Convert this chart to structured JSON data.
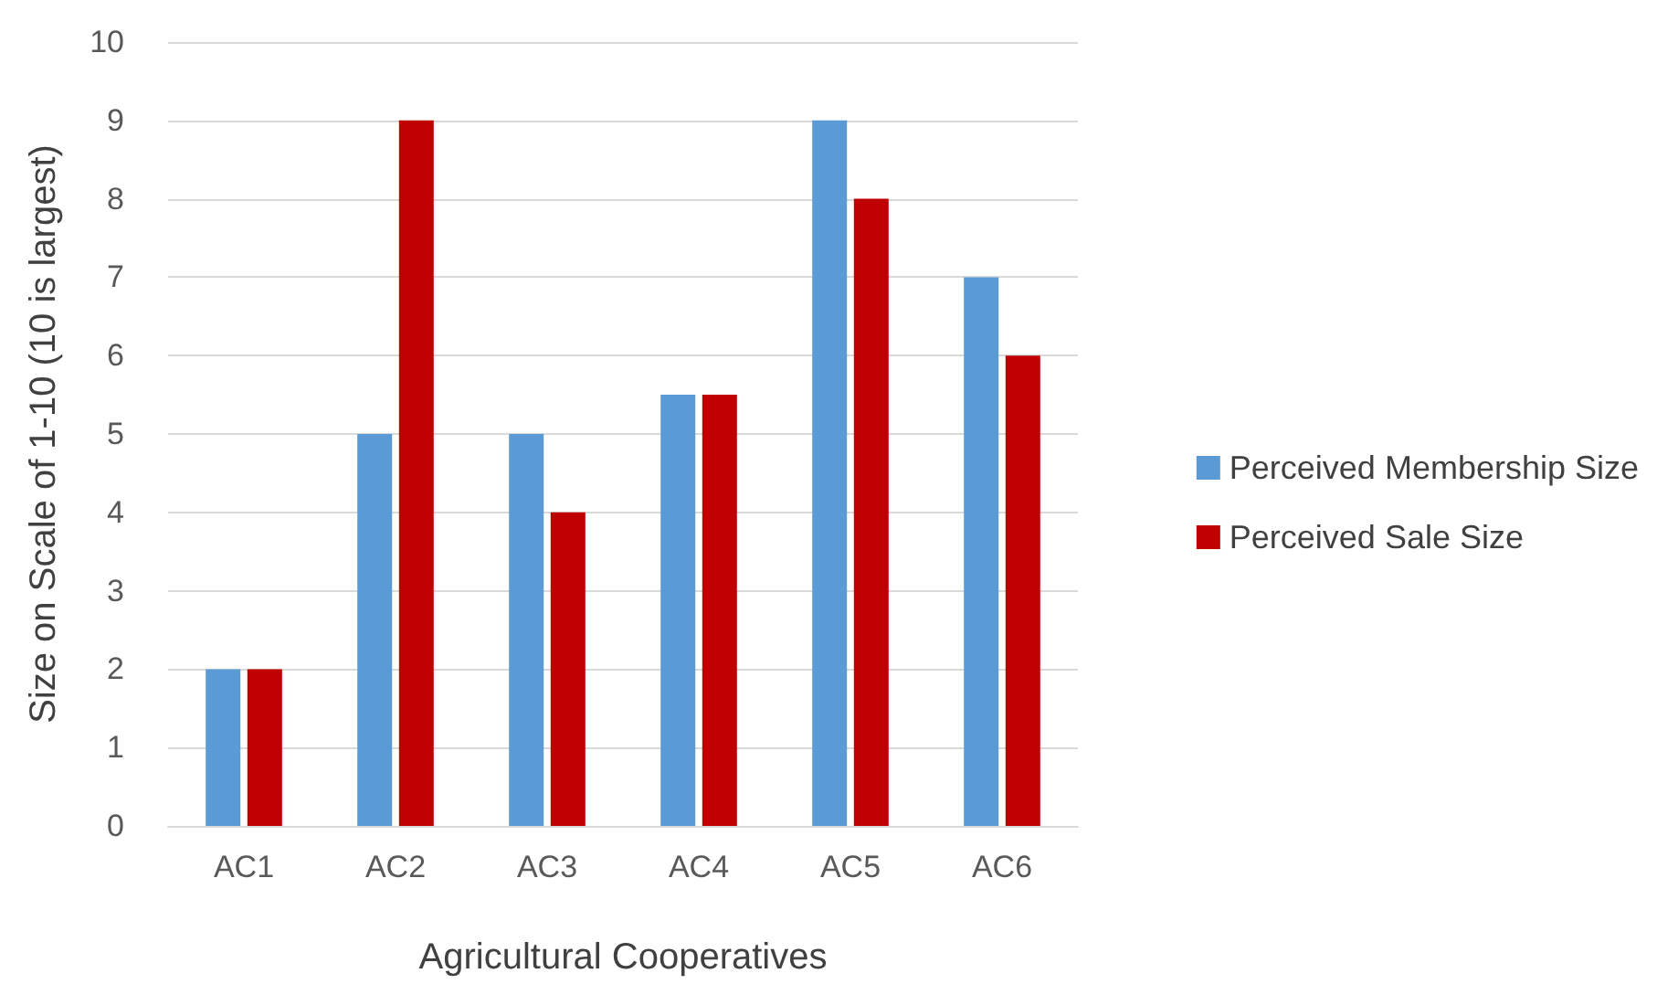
{
  "chart_data": {
    "type": "bar",
    "xlabel": "Agricultural Cooperatives",
    "ylabel": "Size on Scale of 1-10 (10 is largest)",
    "categories": [
      "AC1",
      "AC2",
      "AC3",
      "AC4",
      "AC5",
      "AC6"
    ],
    "series": [
      {
        "name": "Perceived Membership Size",
        "color": "#5b9bd5",
        "values": [
          2,
          5,
          5,
          5.5,
          9,
          7
        ]
      },
      {
        "name": "Perceived Sale Size",
        "color": "#c00000",
        "values": [
          2,
          9,
          4,
          5.5,
          8,
          6
        ]
      }
    ],
    "ylim": [
      0,
      10
    ],
    "yticks": [
      0,
      1,
      2,
      3,
      4,
      5,
      6,
      7,
      8,
      9,
      10
    ],
    "grid": "y",
    "legend": "right"
  }
}
